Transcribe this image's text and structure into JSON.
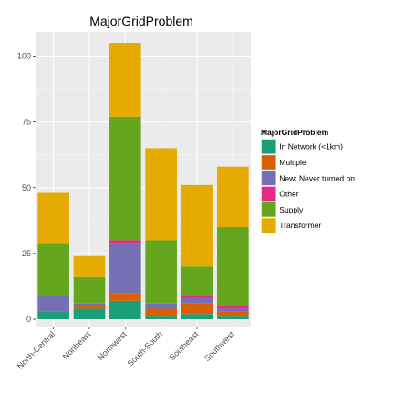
{
  "chart_data": {
    "type": "bar",
    "stacked": true,
    "title": "MajorGridProblem",
    "xlabel": "",
    "ylabel": "",
    "ylim": [
      0,
      110
    ],
    "yticks": [
      0,
      25,
      50,
      75,
      100
    ],
    "grid": true,
    "legend": {
      "title": "MajorGridProblem",
      "position": "right"
    },
    "categories": [
      "North-Central",
      "Northeast",
      "Northwest",
      "South-South",
      "Southeast",
      "Southwest"
    ],
    "series": [
      {
        "name": "In Network (<1km)",
        "color": "#1B9E77",
        "values": [
          3,
          4,
          7,
          1,
          2,
          1
        ]
      },
      {
        "name": "Multiple",
        "color": "#D95F02",
        "values": [
          0,
          1,
          3,
          3,
          4,
          2
        ]
      },
      {
        "name": "New; Never turned on",
        "color": "#7570B3",
        "values": [
          6,
          1,
          19,
          2,
          2,
          1
        ]
      },
      {
        "name": "Other",
        "color": "#E7298A",
        "values": [
          0,
          0,
          1,
          0,
          1,
          1
        ]
      },
      {
        "name": "Supply",
        "color": "#66A61E",
        "values": [
          20,
          10,
          47,
          24,
          11,
          30
        ]
      },
      {
        "name": "Transformer",
        "color": "#E6AB02",
        "values": [
          19,
          8,
          28,
          35,
          31,
          23
        ]
      }
    ]
  }
}
